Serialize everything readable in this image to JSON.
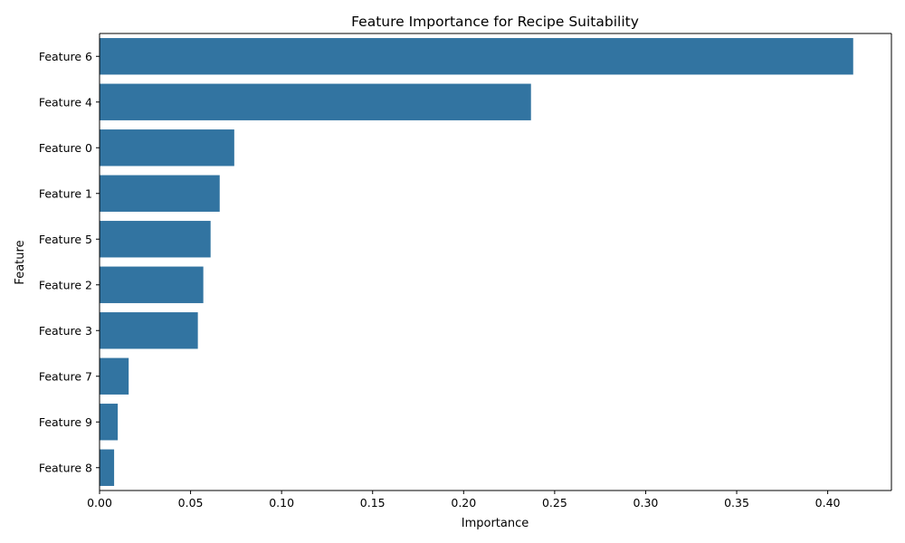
{
  "chart_data": {
    "type": "bar",
    "orientation": "horizontal",
    "title": "Feature Importance for Recipe Suitability",
    "xlabel": "Importance",
    "ylabel": "Feature",
    "categories": [
      "Feature 6",
      "Feature 4",
      "Feature 0",
      "Feature 1",
      "Feature 5",
      "Feature 2",
      "Feature 3",
      "Feature 7",
      "Feature 9",
      "Feature 8"
    ],
    "values": [
      0.414,
      0.237,
      0.074,
      0.066,
      0.061,
      0.057,
      0.054,
      0.016,
      0.01,
      0.008
    ],
    "xlim": [
      0,
      0.435
    ],
    "xticks": [
      0.0,
      0.05,
      0.1,
      0.15,
      0.2,
      0.25,
      0.3,
      0.35,
      0.4
    ],
    "xtick_labels": [
      "0.00",
      "0.05",
      "0.10",
      "0.15",
      "0.20",
      "0.25",
      "0.30",
      "0.35",
      "0.40"
    ],
    "bar_color": "#3274a1",
    "grid": false,
    "legend": "none"
  }
}
